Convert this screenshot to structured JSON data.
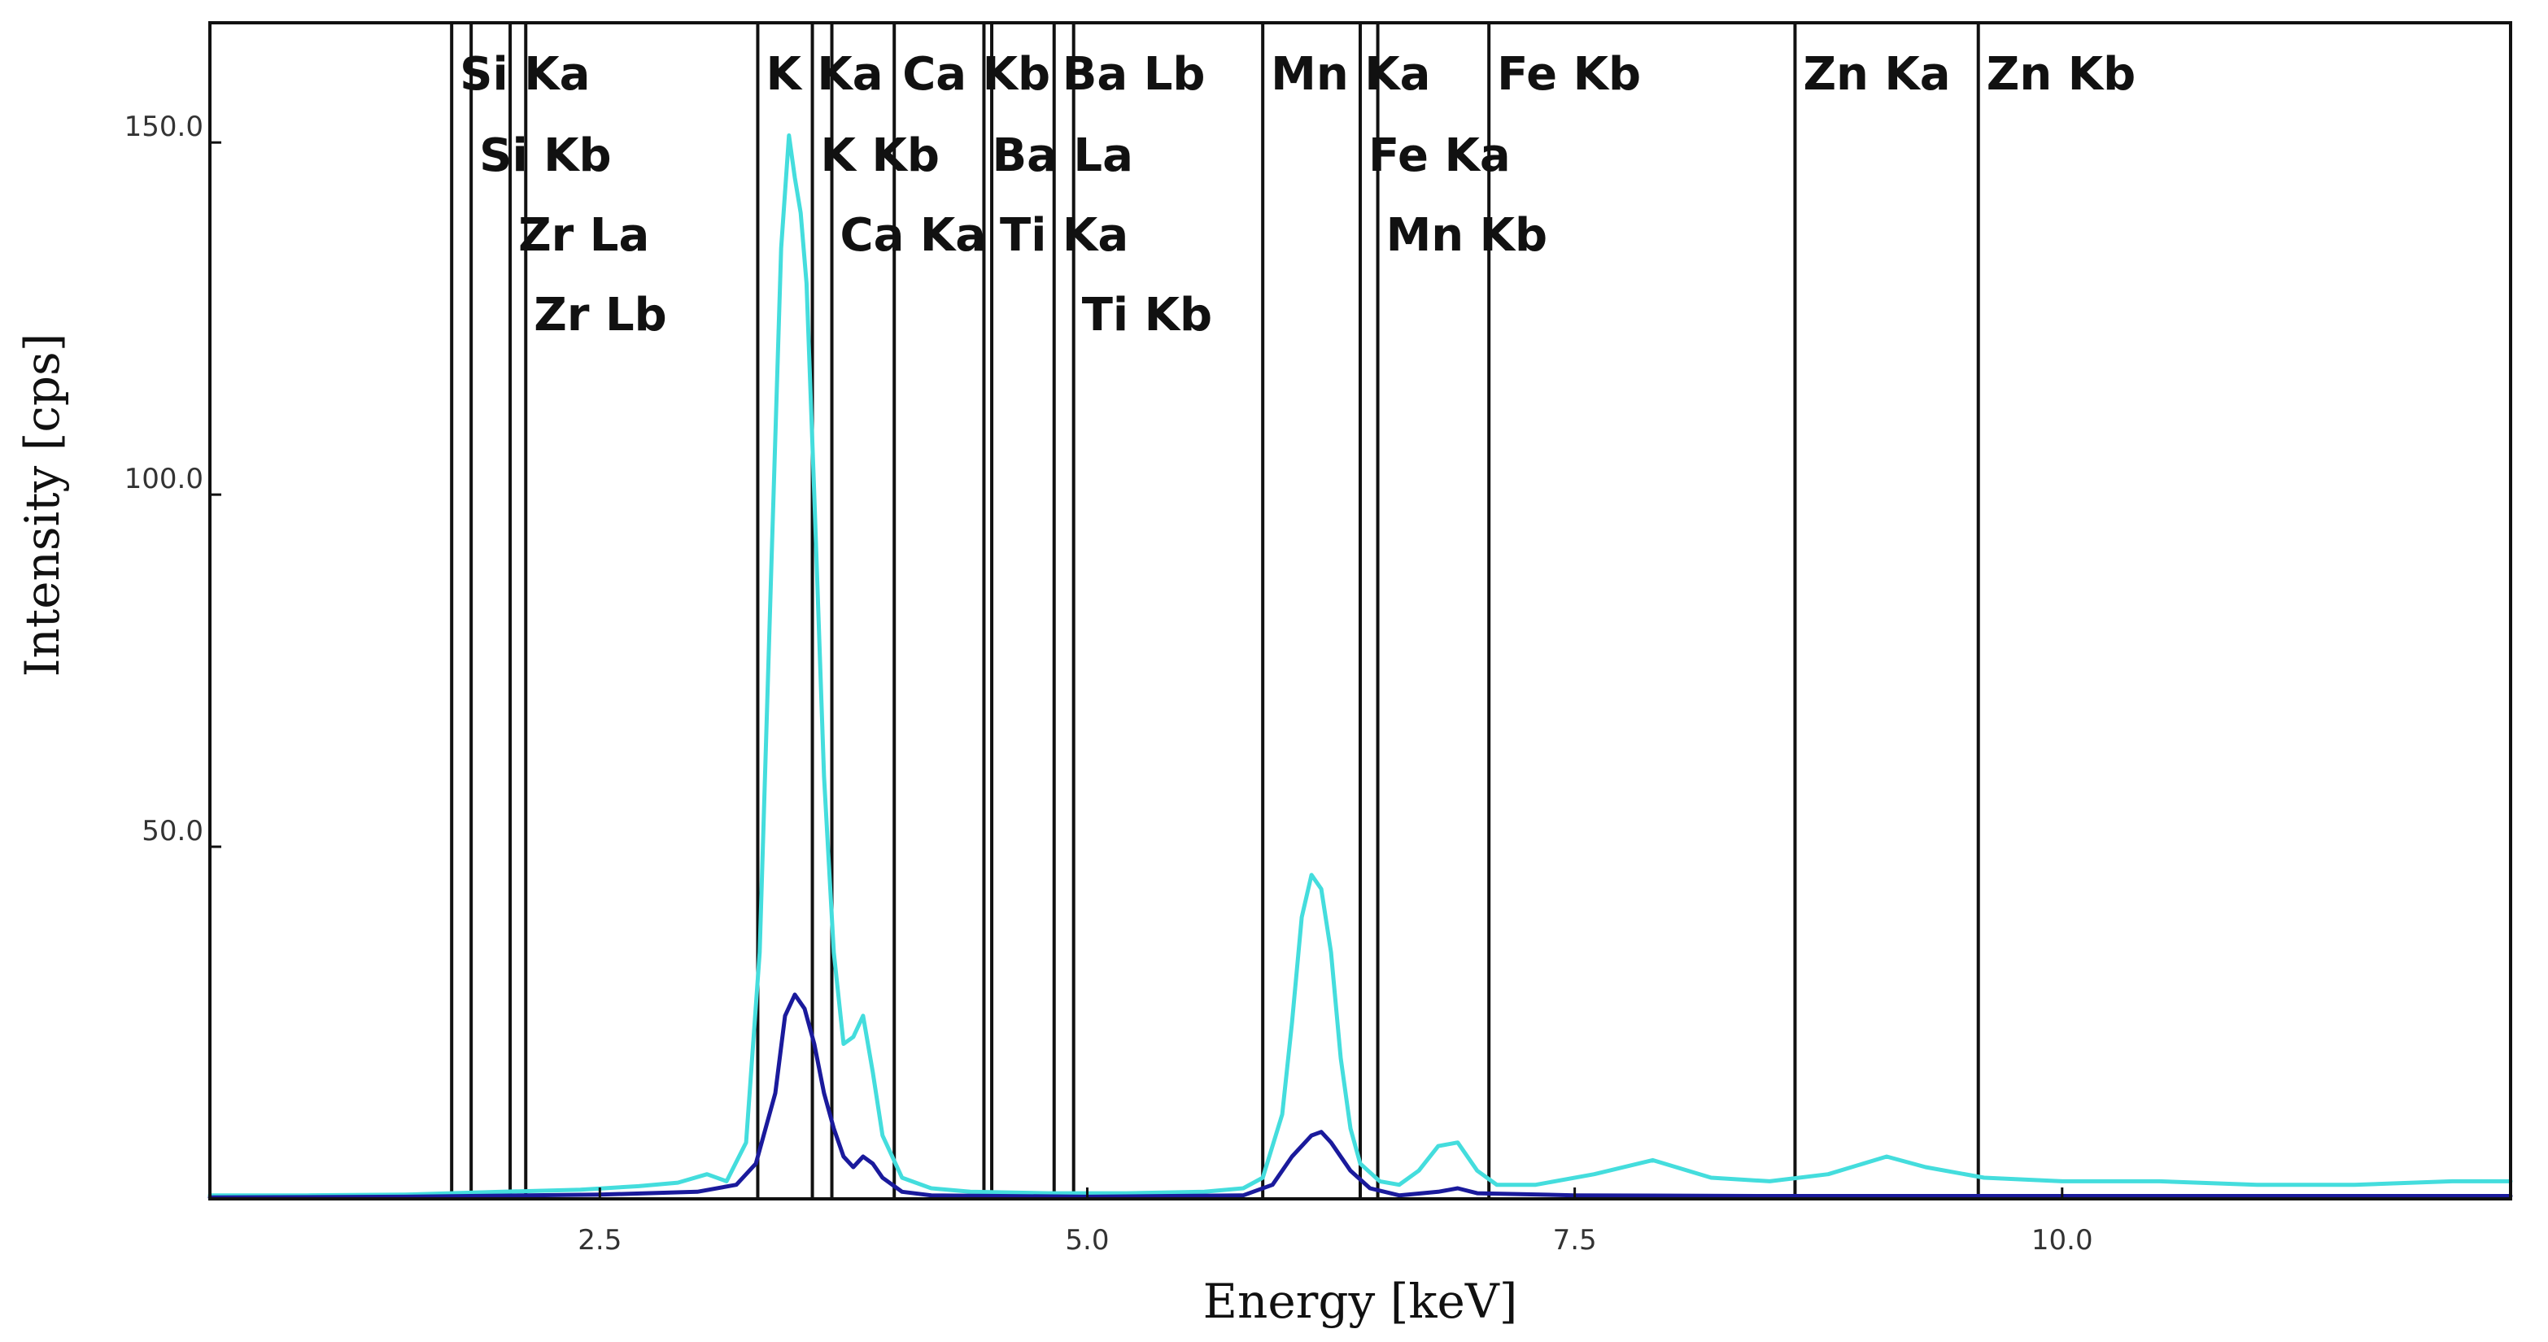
{
  "chart_data": {
    "type": "line",
    "xlabel": "Energy [keV]",
    "ylabel": "Intensity [cps]",
    "xlim": [
      0.5,
      12.3
    ],
    "ylim": [
      0,
      167
    ],
    "x_ticks": [
      {
        "value": 2.5,
        "label": "2.5"
      },
      {
        "value": 5.0,
        "label": "5.0"
      },
      {
        "value": 7.5,
        "label": "7.5"
      },
      {
        "value": 10.0,
        "label": "10.0"
      }
    ],
    "y_ticks": [
      {
        "value": 50,
        "label": "50.0"
      },
      {
        "value": 100,
        "label": "100.0"
      },
      {
        "value": 150,
        "label": "150.0"
      }
    ],
    "grid": false,
    "legend": "none",
    "colors": {
      "series_1": "#44dddd",
      "series_2": "#1a1a9c",
      "marker": "#111111"
    },
    "series": [
      {
        "color": "#44dddd",
        "x": [
          0.5,
          1.0,
          1.5,
          2.0,
          2.4,
          2.7,
          2.9,
          3.05,
          3.15,
          3.25,
          3.32,
          3.38,
          3.43,
          3.47,
          3.5,
          3.53,
          3.56,
          3.6,
          3.65,
          3.7,
          3.75,
          3.8,
          3.85,
          3.9,
          3.95,
          4.05,
          4.2,
          4.4,
          4.8,
          5.2,
          5.6,
          5.8,
          5.9,
          6.0,
          6.05,
          6.1,
          6.15,
          6.2,
          6.25,
          6.3,
          6.35,
          6.4,
          6.5,
          6.6,
          6.7,
          6.8,
          6.9,
          7.0,
          7.1,
          7.3,
          7.6,
          7.9,
          8.2,
          8.5,
          8.8,
          9.1,
          9.3,
          9.6,
          10.0,
          10.5,
          11.0,
          11.5,
          12.0,
          12.3
        ],
        "y": [
          0.5,
          0.5,
          0.6,
          1.0,
          1.3,
          1.8,
          2.3,
          3.5,
          2.5,
          8.0,
          35.0,
          90.0,
          135.0,
          151.0,
          145.0,
          140.0,
          130.0,
          100.0,
          60.0,
          35.0,
          22.0,
          23.0,
          26.0,
          18.0,
          9.0,
          3.0,
          1.5,
          1.0,
          0.8,
          0.8,
          1.0,
          1.5,
          3.0,
          12.0,
          25.0,
          40.0,
          46.0,
          44.0,
          35.0,
          20.0,
          10.0,
          5.0,
          2.5,
          2.0,
          4.0,
          7.5,
          8.0,
          4.0,
          2.0,
          2.0,
          3.5,
          5.5,
          3.0,
          2.5,
          3.5,
          6.0,
          4.5,
          3.0,
          2.5,
          2.5,
          2.0,
          2.0,
          2.5,
          2.5
        ]
      },
      {
        "color": "#1a1a9c",
        "x": [
          0.5,
          1.5,
          2.5,
          3.0,
          3.2,
          3.3,
          3.4,
          3.45,
          3.5,
          3.55,
          3.6,
          3.65,
          3.7,
          3.75,
          3.8,
          3.85,
          3.9,
          3.95,
          4.05,
          4.2,
          5.0,
          5.8,
          5.95,
          6.05,
          6.15,
          6.2,
          6.25,
          6.35,
          6.45,
          6.6,
          6.8,
          6.9,
          7.0,
          7.5,
          8.5,
          10.0,
          12.3
        ],
        "y": [
          0.2,
          0.3,
          0.6,
          1.0,
          2.0,
          5.0,
          15.0,
          26.0,
          29.0,
          27.0,
          22.0,
          15.0,
          10.0,
          6.0,
          4.5,
          6.0,
          5.0,
          3.0,
          1.0,
          0.5,
          0.3,
          0.5,
          2.0,
          6.0,
          9.0,
          9.5,
          8.0,
          4.0,
          1.5,
          0.5,
          1.0,
          1.5,
          0.8,
          0.5,
          0.4,
          0.4,
          0.4
        ]
      }
    ],
    "peak_markers": [
      {
        "energy": 1.74,
        "label": "Si Ka",
        "row": 1
      },
      {
        "energy": 1.84,
        "label": "Si Kb",
        "row": 2
      },
      {
        "energy": 2.04,
        "label": "Zr La",
        "row": 3
      },
      {
        "energy": 2.12,
        "label": "Zr Lb",
        "row": 4
      },
      {
        "energy": 3.31,
        "label": "K Ka",
        "row": 1
      },
      {
        "energy": 3.59,
        "label": "K Kb",
        "row": 2
      },
      {
        "energy": 3.69,
        "label": "Ca Ka",
        "row": 3
      },
      {
        "energy": 4.01,
        "label": "Ca Kb",
        "row": 1
      },
      {
        "energy": 4.47,
        "label": "Ba La",
        "row": 2
      },
      {
        "energy": 4.51,
        "label": "Ti Ka",
        "row": 3
      },
      {
        "energy": 4.83,
        "label": "Ba Lb",
        "row": 1
      },
      {
        "energy": 4.93,
        "label": "Ti Kb",
        "row": 4
      },
      {
        "energy": 5.9,
        "label": "Mn Ka",
        "row": 1
      },
      {
        "energy": 6.4,
        "label": "Fe Ka",
        "row": 2
      },
      {
        "energy": 6.49,
        "label": "Mn Kb",
        "row": 3
      },
      {
        "energy": 7.06,
        "label": "Fe Kb",
        "row": 1
      },
      {
        "energy": 8.63,
        "label": "Zn Ka",
        "row": 1
      },
      {
        "energy": 9.57,
        "label": "Zn Kb",
        "row": 1
      }
    ]
  }
}
